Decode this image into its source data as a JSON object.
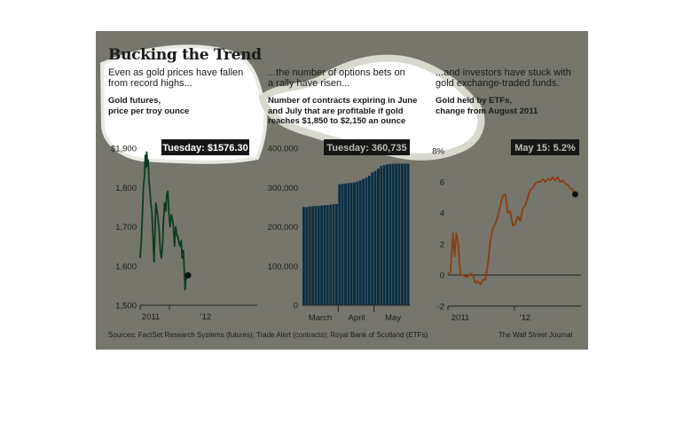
{
  "title": "Bucking the Trend",
  "source": "Sources: FactSet Research Systems (futures); Trade Alert (contracts); Royal Bank of Scotland (ETFs)",
  "credit": "The Wall Street Journal",
  "colors": {
    "background": "#77766c",
    "highlight": "#ffffff",
    "gold_line": "#0d3b22",
    "bars": "#0c2f44",
    "etf_line": "#8a3d10",
    "callout_bg": "#161616"
  },
  "panels": [
    {
      "intro": [
        "Even as gold prices have fallen",
        "from record highs..."
      ],
      "label": [
        "Gold futures,",
        "price per troy ounce"
      ],
      "callout": "Tuesday: $1576.30"
    },
    {
      "intro": [
        "...the number of options bets on",
        "a rally have risen..."
      ],
      "label": [
        "Number of contracts expiring in June",
        "and July that are profitable if gold",
        "reaches $1,850 to $2,150 an ounce"
      ],
      "callout": "Tuesday: 360,735"
    },
    {
      "intro": [
        "...and investors have stuck with",
        "gold exchange-traded funds."
      ],
      "label": [
        "Gold held by ETFs,",
        "change from August 2011"
      ],
      "callout": "May 15: 5.2%"
    }
  ],
  "chart_data": [
    {
      "type": "line",
      "title": "Gold futures, price per troy ounce",
      "ylim": [
        1500,
        1900
      ],
      "yticks": [
        1500,
        1600,
        1700,
        1800,
        1900
      ],
      "ytick_labels": [
        "1,500",
        "1,600",
        "1,700",
        "1,800",
        "$1,900"
      ],
      "xtick_labels": [
        "2011",
        "'12"
      ],
      "x_range": [
        0,
        16
      ],
      "xtick_positions": [
        0,
        4
      ],
      "series": [
        {
          "x": [
            0,
            0.15,
            0.3,
            0.45,
            0.6,
            0.7,
            0.8,
            0.9,
            1.0,
            1.1,
            1.2,
            1.3,
            1.45,
            1.6,
            1.75,
            1.9,
            2.05,
            2.15,
            2.3,
            2.45,
            2.6,
            2.75,
            2.9,
            3.05,
            3.2,
            3.35,
            3.5,
            3.65,
            3.8,
            3.95,
            4.1,
            4.25,
            4.4,
            4.55,
            4.7,
            4.85,
            5.0,
            5.15,
            5.3,
            5.45,
            5.6,
            5.75,
            5.9,
            6.0,
            6.15,
            6.3,
            6.45,
            6.55
          ],
          "y": [
            1620,
            1660,
            1730,
            1800,
            1830,
            1882,
            1850,
            1890,
            1855,
            1870,
            1820,
            1800,
            1760,
            1740,
            1680,
            1610,
            1700,
            1760,
            1740,
            1720,
            1690,
            1640,
            1620,
            1650,
            1720,
            1760,
            1740,
            1785,
            1790,
            1730,
            1700,
            1730,
            1720,
            1700,
            1650,
            1700,
            1680,
            1675,
            1660,
            1650,
            1665,
            1620,
            1640,
            1600,
            1540,
            1580,
            1570,
            1576.3
          ]
        }
      ]
    },
    {
      "type": "bar",
      "title": "Number of contracts expiring in June and July that are profitable if gold reaches $1,850 to $2,150 an ounce",
      "ylim": [
        0,
        400000
      ],
      "yticks": [
        0,
        100000,
        200000,
        300000,
        400000
      ],
      "ytick_labels": [
        "0",
        "100,000",
        "200,000",
        "300,000",
        "400,000"
      ],
      "xtick_labels": [
        "March",
        "April",
        "May"
      ],
      "values": [
        250000,
        250000,
        252000,
        252000,
        253000,
        253000,
        254000,
        255000,
        255000,
        256000,
        257000,
        258000,
        308000,
        309000,
        310000,
        311000,
        312000,
        313000,
        315000,
        318000,
        322000,
        325000,
        330000,
        338000,
        342000,
        348000,
        355000,
        357000,
        359000,
        360000,
        360000,
        360500,
        360735,
        360735,
        360735,
        360735
      ]
    },
    {
      "type": "line",
      "title": "Gold held by ETFs, change from August 2011",
      "ylim": [
        -2,
        8
      ],
      "yticks": [
        -2,
        0,
        2,
        4,
        6,
        8
      ],
      "ytick_labels": [
        "-2",
        "0",
        "2",
        "4",
        "6",
        "8%"
      ],
      "xtick_labels": [
        "2011",
        "'12"
      ],
      "x_range": [
        0,
        16
      ],
      "xtick_positions": [
        0,
        8
      ],
      "series": [
        {
          "x": [
            0,
            0.3,
            0.6,
            0.8,
            1.0,
            1.2,
            1.5,
            1.8,
            2.1,
            2.4,
            2.7,
            3.0,
            3.3,
            3.6,
            3.9,
            4.2,
            4.5,
            4.8,
            5.1,
            5.4,
            5.7,
            6.0,
            6.3,
            6.6,
            6.9,
            7.2,
            7.5,
            7.8,
            8.1,
            8.4,
            8.7,
            9.0,
            9.3,
            9.6,
            9.9,
            10.2,
            10.5,
            10.8,
            11.1,
            11.4,
            11.7,
            12.0,
            12.3,
            12.6,
            12.9,
            13.2,
            13.5,
            13.8,
            14.1,
            14.4,
            14.7,
            15.0,
            15.3
          ],
          "y": [
            0,
            0.2,
            2.7,
            1.2,
            2.7,
            2.2,
            0,
            0,
            -0.1,
            -0.1,
            0.1,
            0.0,
            -0.5,
            -0.4,
            -0.6,
            -0.3,
            -0.3,
            0.7,
            2.2,
            3.0,
            3.3,
            3.8,
            4.5,
            5.1,
            5.2,
            4.0,
            4.1,
            3.2,
            3.3,
            3.8,
            3.5,
            4.3,
            4.5,
            5.0,
            5.5,
            5.6,
            5.9,
            6.0,
            6.0,
            6.2,
            6.0,
            6.2,
            6.1,
            6.3,
            6.1,
            6.3,
            6.0,
            6.1,
            5.9,
            5.8,
            5.6,
            5.5,
            5.2
          ]
        }
      ]
    }
  ]
}
